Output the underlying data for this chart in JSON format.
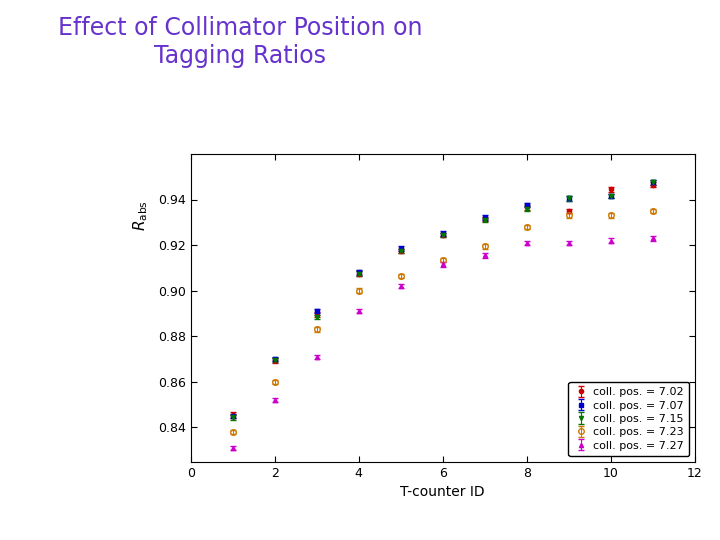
{
  "title": "Effect of Collimator Position on\nTagging Ratios",
  "title_color": "#6633cc",
  "xlabel": "T-counter ID",
  "xlim": [
    0,
    12
  ],
  "ylim": [
    0.825,
    0.96
  ],
  "yticks": [
    0.84,
    0.86,
    0.88,
    0.9,
    0.92,
    0.94
  ],
  "xticks": [
    0,
    2,
    4,
    6,
    8,
    10,
    12
  ],
  "background_color": "#ffffff",
  "series": [
    {
      "label": "coll. pos. = 7.02",
      "color": "#cc0000",
      "marker": "o",
      "markersize": 3,
      "x": [
        1,
        2,
        3,
        4,
        5,
        6,
        7,
        8,
        9,
        10,
        11
      ],
      "y": [
        0.8455,
        0.8695,
        0.8895,
        0.9075,
        0.9175,
        0.9245,
        0.9315,
        0.9365,
        0.935,
        0.9445,
        0.9465
      ],
      "yerr": [
        0.0012,
        0.001,
        0.001,
        0.001,
        0.001,
        0.001,
        0.001,
        0.001,
        0.001,
        0.001,
        0.001
      ],
      "markerfacecolor": "#cc0000",
      "markeredgecolor": "#cc0000"
    },
    {
      "label": "coll. pos. = 7.07",
      "color": "#0000cc",
      "marker": "s",
      "markersize": 3,
      "x": [
        1,
        2,
        3,
        4,
        5,
        6,
        7,
        8,
        9,
        10,
        11
      ],
      "y": [
        0.845,
        0.87,
        0.891,
        0.908,
        0.9185,
        0.925,
        0.932,
        0.9375,
        0.9405,
        0.9415,
        0.9475
      ],
      "yerr": [
        0.001,
        0.0008,
        0.001,
        0.001,
        0.001,
        0.001,
        0.001,
        0.001,
        0.001,
        0.001,
        0.001
      ],
      "markerfacecolor": "#0000cc",
      "markeredgecolor": "#0000cc"
    },
    {
      "label": "coll. pos. = 7.15",
      "color": "#007700",
      "marker": "v",
      "markersize": 3,
      "x": [
        1,
        2,
        3,
        4,
        5,
        6,
        7,
        8,
        9,
        10,
        11
      ],
      "y": [
        0.8445,
        0.8695,
        0.8885,
        0.9075,
        0.9175,
        0.9245,
        0.931,
        0.936,
        0.9405,
        0.9415,
        0.9475
      ],
      "yerr": [
        0.001,
        0.0008,
        0.001,
        0.001,
        0.001,
        0.001,
        0.001,
        0.001,
        0.001,
        0.001,
        0.001
      ],
      "markerfacecolor": "#007700",
      "markeredgecolor": "#007700"
    },
    {
      "label": "coll. pos. = 7.23",
      "color": "#cc7700",
      "marker": "o",
      "markersize": 4,
      "x": [
        1,
        2,
        3,
        4,
        5,
        6,
        7,
        8,
        9,
        10,
        11
      ],
      "y": [
        0.838,
        0.86,
        0.883,
        0.9,
        0.9065,
        0.9135,
        0.9195,
        0.928,
        0.933,
        0.933,
        0.935
      ],
      "yerr": [
        0.001,
        0.001,
        0.001,
        0.001,
        0.001,
        0.001,
        0.001,
        0.001,
        0.001,
        0.001,
        0.001
      ],
      "markerfacecolor": "none",
      "markeredgecolor": "#cc7700"
    },
    {
      "label": "coll. pos. = 7.27",
      "color": "#cc00cc",
      "marker": "^",
      "markersize": 3,
      "x": [
        1,
        2,
        3,
        4,
        5,
        6,
        7,
        8,
        9,
        10,
        11
      ],
      "y": [
        0.831,
        0.852,
        0.871,
        0.891,
        0.902,
        0.9115,
        0.9155,
        0.921,
        0.921,
        0.922,
        0.923
      ],
      "yerr": [
        0.001,
        0.001,
        0.001,
        0.001,
        0.001,
        0.001,
        0.001,
        0.001,
        0.001,
        0.001,
        0.001
      ],
      "markerfacecolor": "#cc00cc",
      "markeredgecolor": "#cc00cc"
    }
  ]
}
